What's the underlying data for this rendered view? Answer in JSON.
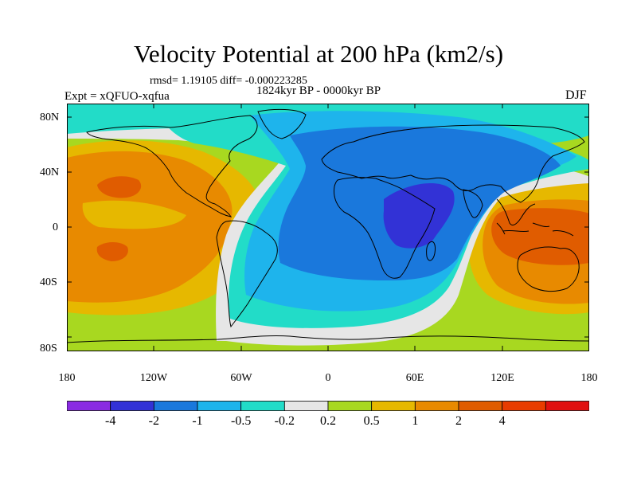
{
  "title": "Velocity Potential at 200 hPa (km2/s)",
  "rmsd_text": "rmsd= 1.19105 diff= -0.000223285",
  "period": "1824kyr BP - 0000kyr BP",
  "expt": "Expt = xQFUO-xqfua",
  "season": "DJF",
  "y_tick_labels": [
    "80N",
    "40N",
    "0",
    "40S",
    "80S"
  ],
  "x_tick_labels": [
    "180",
    "120W",
    "60W",
    "0",
    "60E",
    "120E",
    "180"
  ],
  "colorbar": {
    "colors": [
      "#8a2be2",
      "#3232d6",
      "#1a78dc",
      "#1eb4ec",
      "#22dcc8",
      "#e6e6e6",
      "#a8d820",
      "#e6b800",
      "#e88a00",
      "#e05c00",
      "#e83c00",
      "#e01010"
    ],
    "labels": [
      "-4",
      "-2",
      "-1",
      "-0.5",
      "-0.2",
      "0.2",
      "0.5",
      "1",
      "2",
      "4"
    ]
  },
  "chart_data": {
    "type": "filled-contour-map",
    "title": "Velocity Potential at 200 hPa (km2/s)",
    "projection": "cylindrical-equidistant",
    "lon_range": [
      -180,
      180
    ],
    "lat_range": [
      -90,
      90
    ],
    "levels": [
      -4,
      -2,
      -1,
      -0.5,
      -0.2,
      0.2,
      0.5,
      1,
      2,
      4
    ],
    "features": [
      {
        "name": "east-africa-indian-ocean-minimum",
        "lon": 45,
        "lat": 5,
        "value": -2.5
      },
      {
        "name": "atlantic-negative-region",
        "lon": -20,
        "lat": 0,
        "value": -1.0
      },
      {
        "name": "north-pacific-maximum",
        "lon": -150,
        "lat": 35,
        "value": 2.5
      },
      {
        "name": "south-pacific-maximum",
        "lon": -150,
        "lat": -15,
        "value": 2.2
      },
      {
        "name": "maritime-continent-maximum",
        "lon": 140,
        "lat": 0,
        "value": 3.0
      }
    ]
  }
}
